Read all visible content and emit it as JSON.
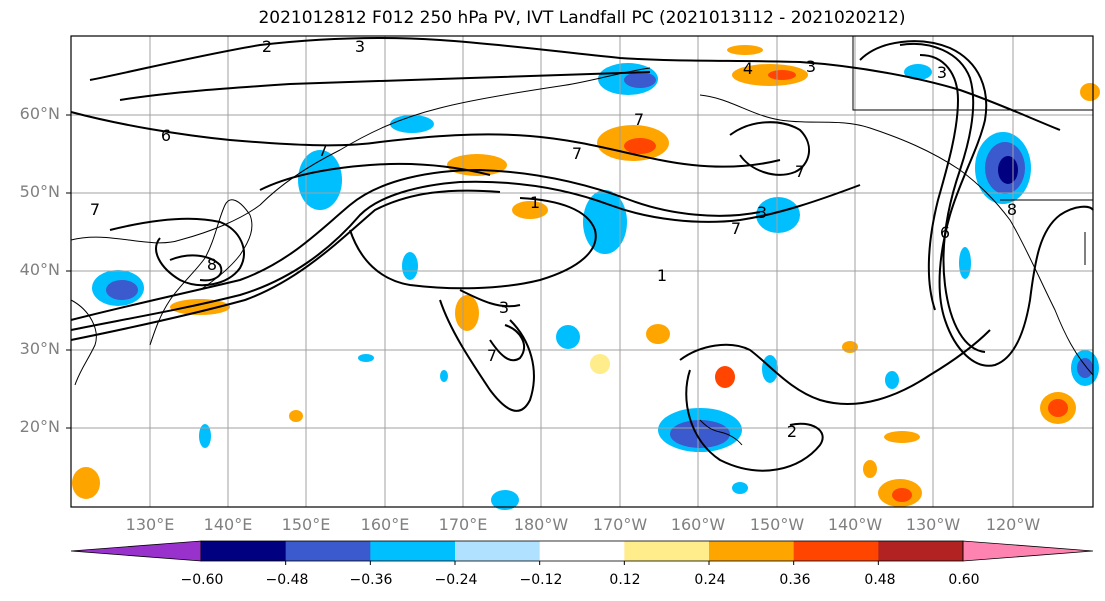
{
  "title": "2021012812 F012 250 hPa PV, IVT Landfall PC (2021013112 - 2021020212)",
  "map": {
    "lat_labels": [
      "60°N",
      "50°N",
      "40°N",
      "30°N",
      "20°N"
    ],
    "lon_labels": [
      "130°E",
      "140°E",
      "150°E",
      "160°E",
      "170°E",
      "180°W",
      "170°W",
      "160°W",
      "150°W",
      "140°W",
      "130°W",
      "120°W"
    ],
    "contour_labels": [
      "2",
      "3",
      "4",
      "3",
      "6",
      "7",
      "7",
      "7",
      "7",
      "8",
      "7",
      "3",
      "7",
      "3",
      "1",
      "1",
      "3",
      "7",
      "6",
      "8",
      "2"
    ]
  },
  "colorbar": {
    "ticks": [
      "−0.60",
      "−0.48",
      "−0.36",
      "−0.24",
      "−0.12",
      "0.12",
      "0.24",
      "0.36",
      "0.48",
      "0.60"
    ],
    "colors": [
      "#9932cc",
      "#000080",
      "#3a5acd",
      "#00bfff",
      "#b0e2ff",
      "#ffffff",
      "#ffec8b",
      "#ffa500",
      "#ff4500",
      "#b22222",
      "#ff83b0"
    ]
  },
  "colors": {
    "frame": "#000000",
    "grid": "#a0a0a0",
    "label": "#808080"
  }
}
